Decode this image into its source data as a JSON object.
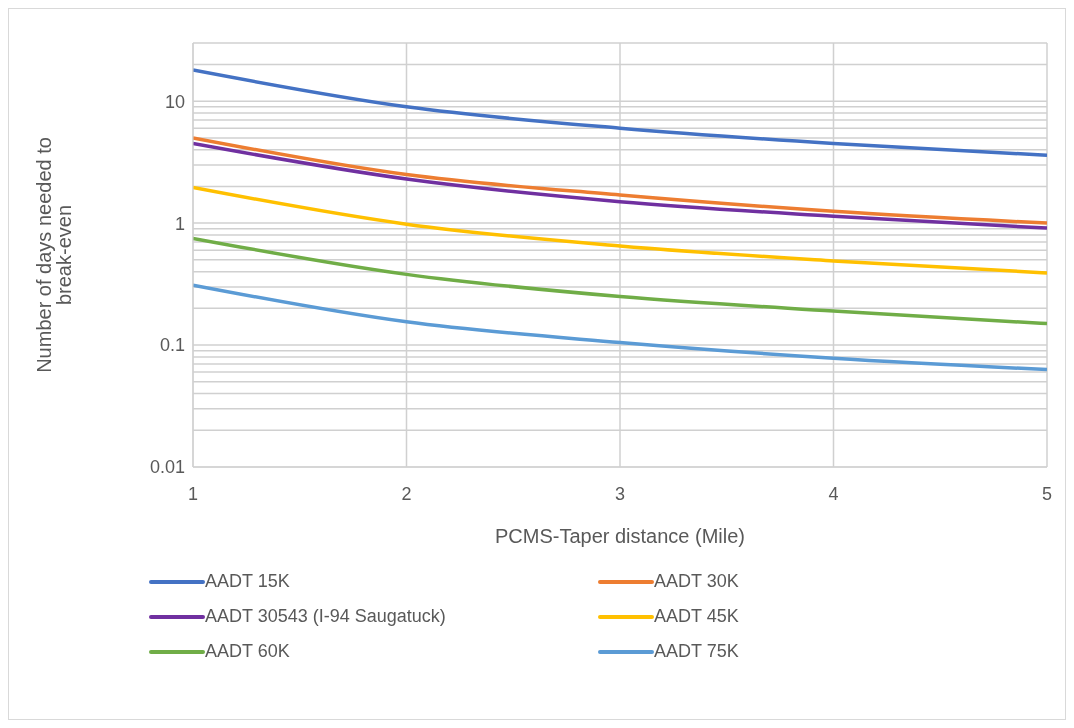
{
  "chart_data": {
    "type": "line",
    "xlabel": "PCMS-Taper distance (Mile)",
    "ylabel": "Number of days needed to break-even",
    "x": [
      1,
      2,
      3,
      4,
      5
    ],
    "xlim": [
      1,
      5
    ],
    "xticks": [
      1,
      2,
      3,
      4,
      5
    ],
    "ylim": [
      0.01,
      30
    ],
    "log": "y",
    "yticks": [
      0.01,
      {
        "value": 0.02,
        "label": null
      },
      {
        "value": 0.03,
        "label": null
      },
      {
        "value": 0.04,
        "label": null
      },
      {
        "value": 0.05,
        "label": null
      },
      {
        "value": 0.06,
        "label": null
      },
      {
        "value": 0.07,
        "label": null
      },
      {
        "value": 0.08,
        "label": null
      },
      {
        "value": 0.09,
        "label": null
      },
      0.1,
      {
        "value": 0.2,
        "label": null
      },
      {
        "value": 0.3,
        "label": null
      },
      {
        "value": 0.4,
        "label": null
      },
      {
        "value": 0.5,
        "label": null
      },
      {
        "value": 0.6,
        "label": null
      },
      {
        "value": 0.7,
        "label": null
      },
      {
        "value": 0.8,
        "label": null
      },
      {
        "value": 0.9,
        "label": null
      },
      1,
      {
        "value": 2,
        "label": null
      },
      {
        "value": 3,
        "label": null
      },
      {
        "value": 4,
        "label": null
      },
      {
        "value": 5,
        "label": null
      },
      {
        "value": 6,
        "label": null
      },
      {
        "value": 7,
        "label": null
      },
      {
        "value": 8,
        "label": null
      },
      {
        "value": 9,
        "label": null
      },
      10,
      {
        "value": 20,
        "label": null
      },
      {
        "value": 30,
        "label": null
      }
    ],
    "grid": true,
    "legend": "bottom",
    "marker": "none",
    "line_style": "solid",
    "series": [
      {
        "name": "AADT 15K",
        "color": "#4472c4",
        "values": [
          18,
          9,
          6,
          4.5,
          3.6
        ]
      },
      {
        "name": "AADT 30K",
        "color": "#ed7d31",
        "values": [
          5,
          2.5,
          1.7,
          1.25,
          1.0
        ]
      },
      {
        "name": "AADT 30543 (I-94 Saugatuck)",
        "color": "#7030a0",
        "values": [
          4.5,
          2.3,
          1.5,
          1.14,
          0.91
        ]
      },
      {
        "name": "AADT 45K",
        "color": "#ffc000",
        "values": [
          1.96,
          0.98,
          0.65,
          0.49,
          0.39
        ]
      },
      {
        "name": "AADT 60K",
        "color": "#70ad47",
        "values": [
          0.75,
          0.38,
          0.25,
          0.19,
          0.15
        ]
      },
      {
        "name": "AADT 75K",
        "color": "#5b9bd5",
        "values": [
          0.31,
          0.155,
          0.105,
          0.078,
          0.063
        ]
      }
    ]
  }
}
